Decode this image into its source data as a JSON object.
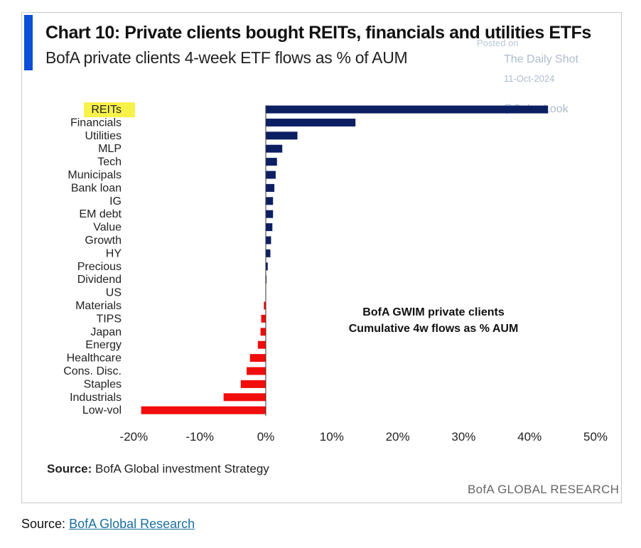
{
  "header": {
    "title": "Chart 10: Private clients bought REITs, financials and utilities ETFs",
    "subtitle": "BofA private clients 4-week ETF flows as % of AUM"
  },
  "watermark": {
    "posted": "Posted on",
    "site": "The Daily Shot",
    "date": "11-Oct-2024",
    "handle": "@SoberLook"
  },
  "chart_data": {
    "type": "bar",
    "orientation": "horizontal",
    "categories": [
      "REITs",
      "Financials",
      "Utilities",
      "MLP",
      "Tech",
      "Municipals",
      "Bank loan",
      "IG",
      "EM debt",
      "Value",
      "Growth",
      "HY",
      "Precious",
      "Dividend",
      "US",
      "Materials",
      "TIPS",
      "Japan",
      "Energy",
      "Healthcare",
      "Cons. Disc.",
      "Staples",
      "Industrials",
      "Low-vol"
    ],
    "values": [
      42.8,
      13.6,
      4.8,
      2.5,
      1.7,
      1.5,
      1.3,
      1.1,
      1.1,
      1.0,
      0.8,
      0.7,
      0.3,
      0.1,
      0.0,
      -0.3,
      -0.7,
      -0.8,
      -1.2,
      -2.4,
      -2.9,
      -3.8,
      -6.4,
      -18.9
    ],
    "highlighted_category": "REITs",
    "positive_color": "#0d1f63",
    "negative_color": "#f20d0d",
    "highlight_color": "#f7f24a",
    "xlim": [
      -20,
      50
    ],
    "xticks": [
      -20,
      -10,
      0,
      10,
      20,
      30,
      40,
      50
    ],
    "xtick_labels": [
      "-20%",
      "-10%",
      "0%",
      "10%",
      "20%",
      "30%",
      "40%",
      "50%"
    ],
    "annotation": [
      "BofA GWIM private clients",
      "Cumulative 4w flows as % AUM"
    ],
    "grid": false
  },
  "source": {
    "label": "Source:",
    "text": "BofA Global investment Strategy"
  },
  "brand": "BofA GLOBAL RESEARCH",
  "footer": {
    "prefix": "Source:",
    "link_text": "BofA Global Research"
  }
}
